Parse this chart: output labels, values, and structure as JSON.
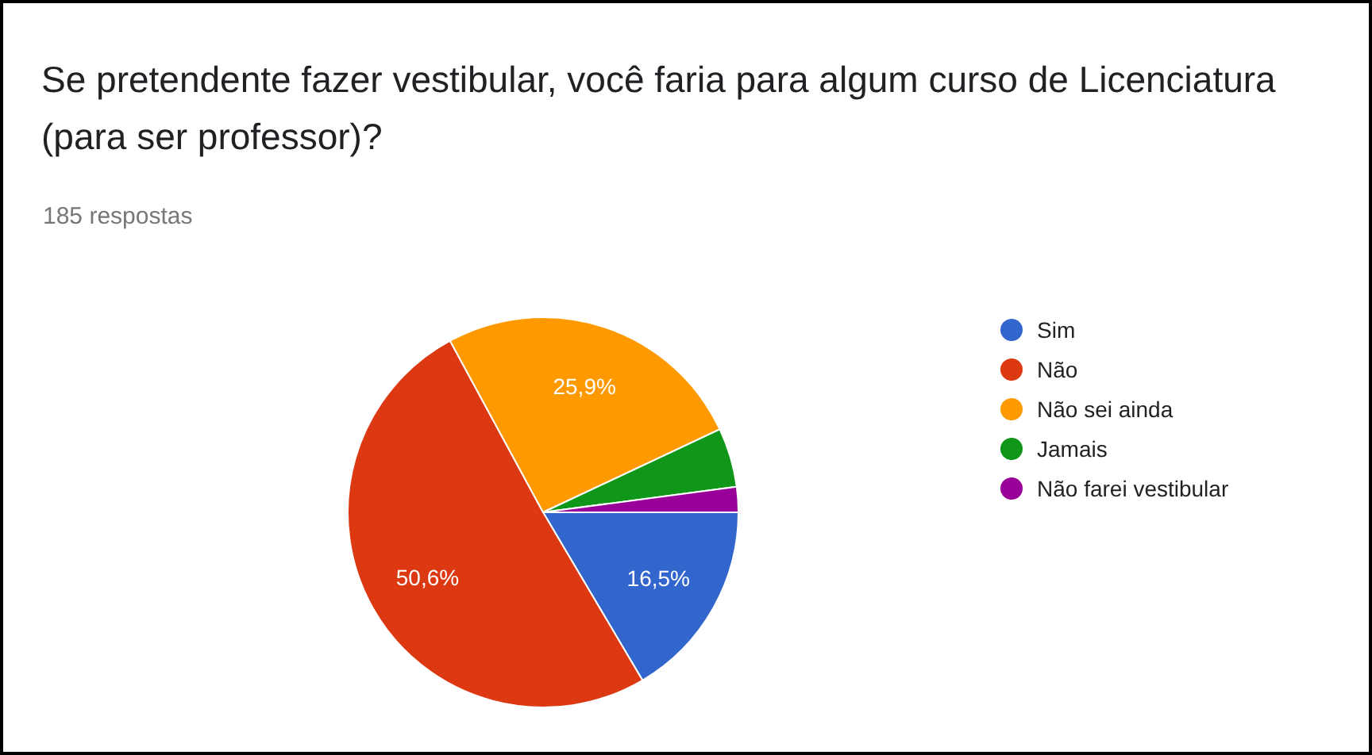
{
  "chart_data": {
    "type": "pie",
    "title": "Se pretendente fazer vestibular, você faria para algum curso de Licenciatura (para ser professor)?",
    "subtitle": "185 respostas",
    "categories": [
      "Sim",
      "Não",
      "Não sei ainda",
      "Jamais",
      "Não farei vestibular"
    ],
    "values": [
      16.5,
      50.6,
      25.9,
      4.9,
      2.1
    ],
    "colors": [
      "#3366cc",
      "#dc3912",
      "#ff9900",
      "#109618",
      "#990099"
    ],
    "value_labels": [
      "16,5%",
      "50,6%",
      "25,9%",
      null,
      null
    ],
    "legend": "right"
  }
}
